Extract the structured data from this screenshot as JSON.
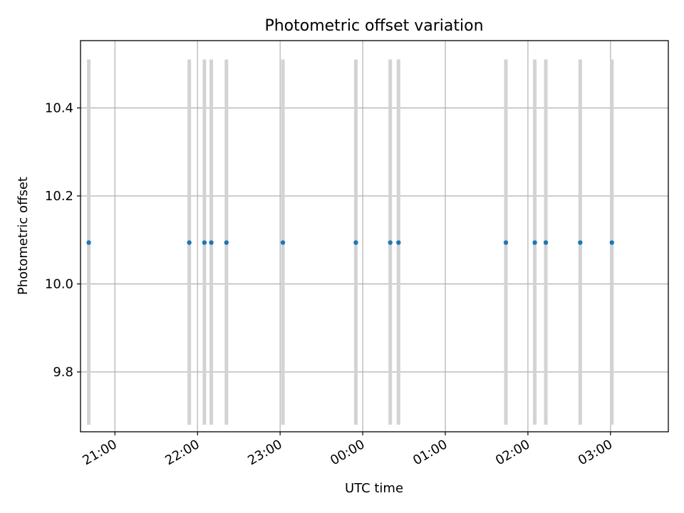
{
  "chart_data": {
    "type": "scatter",
    "title": "Photometric offset variation",
    "xlabel": "UTC time",
    "ylabel": "Photometric offset",
    "grid": true,
    "x_ticks": [
      "21:00",
      "22:00",
      "23:00",
      "00:00",
      "01:00",
      "02:00",
      "03:00"
    ],
    "y_ticks": [
      "9.8",
      "10.0",
      "10.2",
      "10.4"
    ],
    "y_tick_values": [
      9.8,
      10.0,
      10.2,
      10.4
    ],
    "xlim": [
      "20:35",
      "03:42"
    ],
    "ylim": [
      9.664,
      10.553
    ],
    "series": [
      {
        "color": "#1f77b4",
        "x": [
          "20:41",
          "21:54",
          "22:05",
          "22:10",
          "22:21",
          "23:02",
          "23:55",
          "00:20",
          "00:26",
          "01:44",
          "02:05",
          "02:13",
          "02:38",
          "03:01"
        ],
        "y": [
          10.094,
          10.094,
          10.094,
          10.094,
          10.094,
          10.094,
          10.094,
          10.094,
          10.094,
          10.094,
          10.094,
          10.094,
          10.094,
          10.094
        ],
        "error_band": [
          9.68,
          10.51
        ],
        "error_color": "#d3d3d3"
      }
    ]
  }
}
